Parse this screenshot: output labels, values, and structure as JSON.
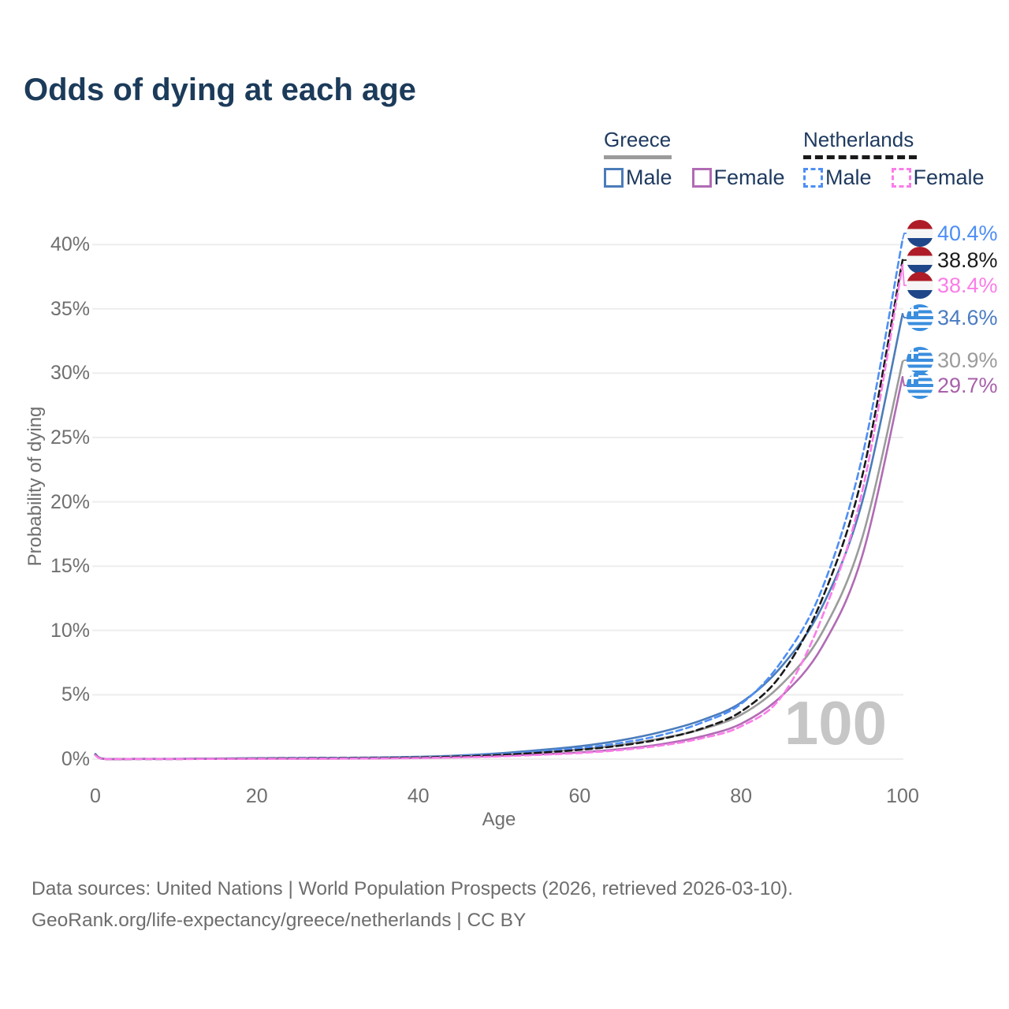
{
  "title": "Odds of dying at each age",
  "legend": {
    "greece": {
      "label": "Greece",
      "male_label": "Male",
      "female_label": "Female"
    },
    "netherlands": {
      "label": "Netherlands",
      "male_label": "Male",
      "female_label": "Female"
    }
  },
  "axes": {
    "y_title": "Probability of dying",
    "x_title": "Age",
    "y_ticks": [
      "0%",
      "5%",
      "10%",
      "15%",
      "20%",
      "25%",
      "30%",
      "35%",
      "40%"
    ],
    "x_ticks": [
      "0",
      "20",
      "40",
      "60",
      "80",
      "100"
    ]
  },
  "watermark": "100",
  "footer": {
    "line1": "Data sources: United Nations | World Population Prospects (2026, retrieved 2026-03-10).",
    "line2": "GeoRank.org/life-expectancy/greece/netherlands | CC BY"
  },
  "chart_data": {
    "type": "line",
    "title": "Odds of dying at each age",
    "xlabel": "Age",
    "ylabel": "Probability of dying",
    "xlim": [
      0,
      100
    ],
    "ylim": [
      0,
      42
    ],
    "x_ticks": [
      0,
      20,
      40,
      60,
      80,
      100
    ],
    "y_ticks_pct": [
      0,
      5,
      10,
      15,
      20,
      25,
      30,
      35,
      40
    ],
    "grid": "horizontal-only",
    "legend_position": "top-right",
    "x": [
      0,
      1,
      5,
      10,
      15,
      20,
      25,
      30,
      35,
      40,
      45,
      50,
      55,
      60,
      65,
      70,
      75,
      80,
      85,
      90,
      95,
      100
    ],
    "series": [
      {
        "name": "Greece Male",
        "country": "Greece",
        "sex": "Male",
        "style": "solid",
        "color": "#4b7cba",
        "values": [
          0.4,
          0.03,
          0.02,
          0.02,
          0.04,
          0.07,
          0.09,
          0.1,
          0.13,
          0.18,
          0.28,
          0.45,
          0.7,
          1.0,
          1.45,
          2.1,
          3.0,
          4.4,
          7.2,
          11.8,
          20.0,
          34.6
        ],
        "end_label": "34.6%"
      },
      {
        "name": "Greece Total",
        "country": "Greece",
        "sex": "Both",
        "style": "solid",
        "color": "#9b9b9b",
        "values": [
          0.37,
          0.027,
          0.017,
          0.017,
          0.033,
          0.05,
          0.07,
          0.08,
          0.1,
          0.14,
          0.22,
          0.35,
          0.54,
          0.76,
          1.1,
          1.6,
          2.3,
          3.45,
          5.8,
          9.8,
          17.2,
          30.9
        ],
        "end_label": "30.9%"
      },
      {
        "name": "Greece Female",
        "country": "Greece",
        "sex": "Female",
        "style": "solid",
        "color": "#b16bb4",
        "values": [
          0.33,
          0.022,
          0.013,
          0.013,
          0.02,
          0.03,
          0.035,
          0.045,
          0.06,
          0.09,
          0.15,
          0.24,
          0.37,
          0.52,
          0.78,
          1.15,
          1.75,
          2.75,
          4.9,
          8.7,
          15.8,
          29.7
        ],
        "end_label": "29.7%"
      },
      {
        "name": "Netherlands Male",
        "country": "Netherlands",
        "sex": "Male",
        "style": "dashed",
        "color": "#4d8ef5",
        "values": [
          0.35,
          0.025,
          0.015,
          0.015,
          0.03,
          0.06,
          0.08,
          0.09,
          0.11,
          0.15,
          0.24,
          0.38,
          0.6,
          0.85,
          1.25,
          1.85,
          2.8,
          4.3,
          7.6,
          13.2,
          23.5,
          40.4
        ],
        "end_label": "40.4%"
      },
      {
        "name": "Netherlands Total",
        "country": "Netherlands",
        "sex": "Both",
        "style": "dashed",
        "color": "#1a1a1a",
        "values": [
          0.33,
          0.022,
          0.013,
          0.013,
          0.025,
          0.05,
          0.06,
          0.07,
          0.09,
          0.13,
          0.2,
          0.32,
          0.5,
          0.72,
          1.05,
          1.55,
          2.35,
          3.7,
          6.6,
          12.4,
          22.0,
          38.8
        ],
        "end_label": "38.8%"
      },
      {
        "name": "Netherlands Female",
        "country": "Netherlands",
        "sex": "Female",
        "style": "dashed",
        "color": "#fb7ce8",
        "values": [
          0.3,
          0.02,
          0.012,
          0.012,
          0.018,
          0.028,
          0.032,
          0.04,
          0.055,
          0.08,
          0.13,
          0.21,
          0.33,
          0.47,
          0.7,
          1.05,
          1.6,
          2.55,
          4.85,
          11.0,
          20.8,
          38.4
        ],
        "end_label": "38.4%"
      }
    ],
    "end_labels": [
      {
        "series": "Netherlands Male",
        "value": "40.4%",
        "flag": "netherlands",
        "color": "#4d8ef5"
      },
      {
        "series": "Netherlands Total",
        "value": "38.8%",
        "flag": "netherlands",
        "color": "#1a1a1a"
      },
      {
        "series": "Netherlands Female",
        "value": "38.4%",
        "flag": "netherlands",
        "color": "#fb7ce8"
      },
      {
        "series": "Greece Male",
        "value": "34.6%",
        "flag": "greece",
        "color": "#4a7cc2"
      },
      {
        "series": "Greece Total",
        "value": "30.9%",
        "flag": "greece",
        "color": "#9b9b9b"
      },
      {
        "series": "Greece Female",
        "value": "29.7%",
        "flag": "greece",
        "color": "#a861aa"
      }
    ]
  }
}
